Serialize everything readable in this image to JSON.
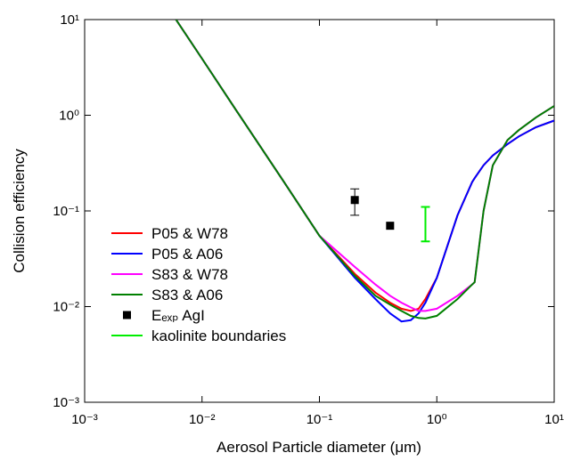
{
  "chart_data": {
    "type": "line",
    "xlabel": "Aerosol Particle diameter (μm)",
    "ylabel": "Collision efficiency",
    "xscale": "log",
    "yscale": "log",
    "xlim": [
      0.001,
      10
    ],
    "ylim": [
      0.001,
      10
    ],
    "xticks": [
      {
        "value": 0.001,
        "label": "10⁻³"
      },
      {
        "value": 0.01,
        "label": "10⁻²"
      },
      {
        "value": 0.1,
        "label": "10⁻¹"
      },
      {
        "value": 1,
        "label": "10⁰"
      },
      {
        "value": 10,
        "label": "10¹"
      }
    ],
    "yticks": [
      {
        "value": 0.001,
        "label": "10⁻³"
      },
      {
        "value": 0.01,
        "label": "10⁻²"
      },
      {
        "value": 0.1,
        "label": "10⁻¹"
      },
      {
        "value": 1,
        "label": "10⁰"
      },
      {
        "value": 10,
        "label": "10¹"
      }
    ],
    "x": [
      0.006,
      0.01,
      0.02,
      0.05,
      0.1,
      0.2,
      0.3,
      0.4,
      0.5,
      0.6,
      0.7,
      0.8,
      1,
      1.5,
      2,
      2.1,
      2.5,
      3,
      4,
      5,
      7,
      10
    ],
    "series": [
      {
        "name": "P05 & W78",
        "color": "#ff0000",
        "values": [
          10,
          3.9,
          1.08,
          0.2,
          0.055,
          0.022,
          0.014,
          0.011,
          0.0095,
          0.009,
          0.0095,
          0.012,
          0.02,
          0.09,
          0.2,
          0.22,
          0.3,
          0.38,
          0.5,
          0.6,
          0.75,
          0.88
        ]
      },
      {
        "name": "P05 & A06",
        "color": "#0000ff",
        "values": [
          10,
          3.9,
          1.08,
          0.2,
          0.055,
          0.02,
          0.012,
          0.0085,
          0.007,
          0.0072,
          0.0085,
          0.011,
          0.02,
          0.09,
          0.2,
          0.22,
          0.3,
          0.38,
          0.5,
          0.6,
          0.75,
          0.88
        ]
      },
      {
        "name": "S83 & W78",
        "color": "#ff00ff",
        "values": [
          10,
          3.9,
          1.08,
          0.2,
          0.055,
          0.026,
          0.017,
          0.013,
          0.011,
          0.0098,
          0.009,
          0.009,
          0.0095,
          0.013,
          0.017,
          0.018,
          0.1,
          0.3,
          0.55,
          0.7,
          0.95,
          1.25
        ]
      },
      {
        "name": "S83 & A06",
        "color": "#008000",
        "values": [
          10,
          3.9,
          1.08,
          0.2,
          0.055,
          0.021,
          0.013,
          0.0105,
          0.009,
          0.008,
          0.0076,
          0.0075,
          0.008,
          0.012,
          0.017,
          0.018,
          0.1,
          0.3,
          0.55,
          0.7,
          0.95,
          1.25
        ]
      }
    ],
    "points": {
      "name": "Eₑₓₚ AgI",
      "color": "#000000",
      "x": [
        0.2,
        0.4
      ],
      "values": [
        0.13,
        0.07
      ],
      "errors": [
        0.04,
        null
      ]
    },
    "range": {
      "name": "kaolinite boundaries",
      "color": "#00ee00",
      "x": 0.8,
      "low": 0.048,
      "high": 0.11
    },
    "legend": "left"
  }
}
